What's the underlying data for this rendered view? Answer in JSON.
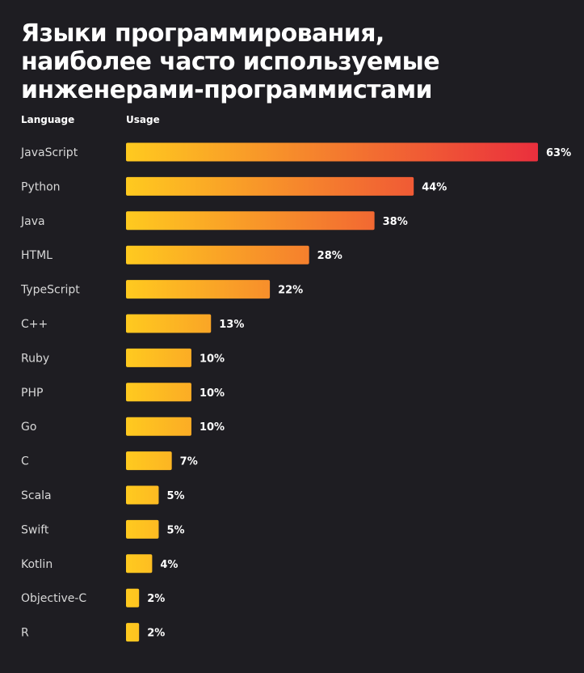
{
  "title_lines": [
    "Языки программирования,",
    "наиболее часто используемые",
    "инженерами-программистами"
  ],
  "colors": {
    "background": "#1e1d22",
    "bar_start": "#ffca1f",
    "bar_end": "#ea2f3d",
    "label_text": "#d8d8d8",
    "value_text": "#ffffff"
  },
  "chart_data": {
    "type": "bar",
    "orientation": "horizontal",
    "xlabel": "Usage",
    "ylabel": "Language",
    "categories": [
      "JavaScript",
      "Python",
      "Java",
      "HTML",
      "TypeScript",
      "C++",
      "Ruby",
      "PHP",
      "Go",
      "C",
      "Scala",
      "Swift",
      "Kotlin",
      "Objective-C",
      "R"
    ],
    "values": [
      63,
      44,
      38,
      28,
      22,
      13,
      10,
      10,
      10,
      7,
      5,
      5,
      4,
      2,
      2
    ],
    "value_labels": [
      "63%",
      "44%",
      "38%",
      "28%",
      "22%",
      "13%",
      "10%",
      "10%",
      "10%",
      "7%",
      "5%",
      "5%",
      "4%",
      "2%",
      "2%"
    ],
    "unit": "%",
    "xlim": [
      0,
      63
    ],
    "grid": false,
    "legend": "none"
  }
}
